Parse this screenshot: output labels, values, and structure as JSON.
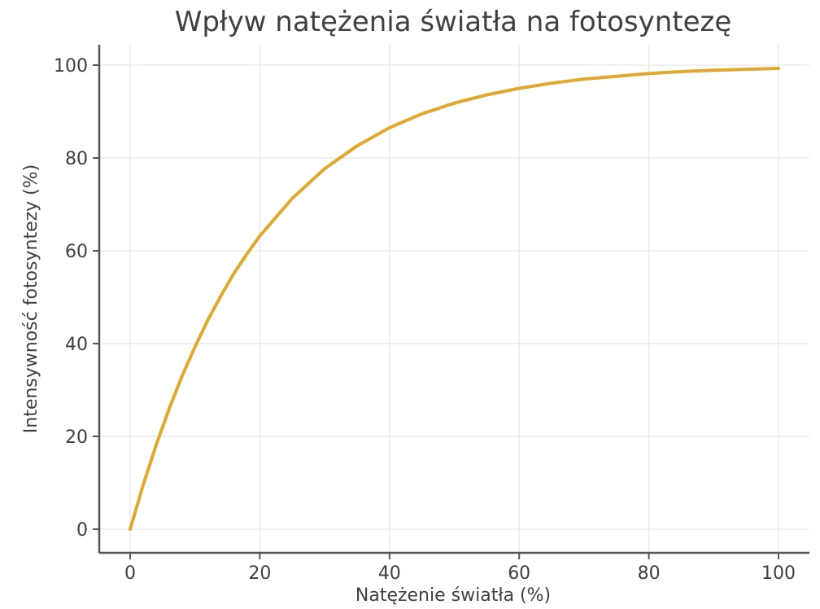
{
  "chart_data": {
    "type": "line",
    "title": "Wpływ natężenia światła na fotosyntezę",
    "xlabel": "Natężenie światła (%)",
    "ylabel": "Intensywność fotosyntezy (%)",
    "xlim": [
      0,
      100
    ],
    "ylim": [
      0,
      100
    ],
    "xticks": [
      0,
      20,
      40,
      60,
      80,
      100
    ],
    "yticks": [
      0,
      20,
      40,
      60,
      80,
      100
    ],
    "grid": true,
    "series": [
      {
        "color": "#e0a82e",
        "x": [
          0,
          2,
          4,
          6,
          8,
          10,
          12,
          14,
          16,
          18,
          20,
          25,
          30,
          35,
          40,
          45,
          50,
          55,
          60,
          65,
          70,
          75,
          80,
          85,
          90,
          95,
          100
        ],
        "y": [
          0,
          9.5,
          18.1,
          25.9,
          33.0,
          39.3,
          45.1,
          50.3,
          55.1,
          59.3,
          63.2,
          71.3,
          77.7,
          82.6,
          86.5,
          89.5,
          91.8,
          93.6,
          95.0,
          96.1,
          97.0,
          97.6,
          98.2,
          98.6,
          98.9,
          99.1,
          99.3
        ]
      }
    ]
  }
}
